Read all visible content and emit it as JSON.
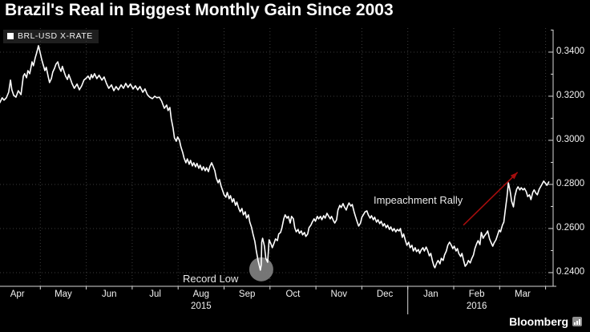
{
  "header": {
    "title": "Brazil's Real in Biggest Monthly Gain Since 2003"
  },
  "legend": {
    "label": "BRL-USD X-RATE",
    "swatch": "white-square"
  },
  "annotations": {
    "record_low": {
      "label": "Record Low"
    },
    "impeachment_rally": {
      "label": "Impeachment Rally"
    }
  },
  "footer": {
    "brand": "Bloomberg",
    "icon": "bar-chart-icon"
  },
  "colors": {
    "background": "#000000",
    "line": "#ffffff",
    "grid": "#3c3c3c",
    "axis": "#d9d9d9",
    "text": "#f2f2f2",
    "arrow": "#a50d0d",
    "record_low_circle": "#808080",
    "legend_bg": "#1e1e1e"
  },
  "chart_data": {
    "type": "line",
    "series_name": "BRL-USD X-RATE",
    "title": "Brazil's Real in Biggest Monthly Gain Since 2003",
    "x_unit": "months since Apr 1 2015",
    "x_tick_labels": [
      "Apr",
      "May",
      "Jun",
      "Jul",
      "Aug",
      "Sep",
      "Oct",
      "Nov",
      "Dec",
      "Jan",
      "Feb",
      "Mar"
    ],
    "year_labels": [
      {
        "text": "2015",
        "under_month_index": 4
      },
      {
        "text": "2016",
        "under_month_index": 10
      }
    ],
    "y_ticks": [
      0.24,
      0.26,
      0.28,
      0.3,
      0.32,
      0.34
    ],
    "y_tick_labels": [
      "0.2400",
      "0.2600",
      "0.2800",
      "0.3000",
      "0.3200",
      "0.3400"
    ],
    "y_minor_ticks": [
      0.25,
      0.27,
      0.29,
      0.31,
      0.33,
      0.35
    ],
    "ylim": [
      0.2338,
      0.3509
    ],
    "xlim": [
      0.12,
      12.16
    ],
    "grid": "dotted",
    "legend_position": "top-left",
    "annotations": {
      "record_low": {
        "x": 5.81,
        "y": 0.2415,
        "marker": "gray-circle",
        "radius_px": 15
      },
      "impeachment_arrow": {
        "from": [
          10.21,
          0.2615
        ],
        "to": [
          11.39,
          0.2855
        ]
      }
    },
    "points": [
      [
        0.12,
        0.3171
      ],
      [
        0.17,
        0.3193
      ],
      [
        0.21,
        0.3182
      ],
      [
        0.26,
        0.3193
      ],
      [
        0.31,
        0.3218
      ],
      [
        0.35,
        0.3273
      ],
      [
        0.38,
        0.3229
      ],
      [
        0.42,
        0.3204
      ],
      [
        0.47,
        0.3196
      ],
      [
        0.52,
        0.3225
      ],
      [
        0.58,
        0.3207
      ],
      [
        0.63,
        0.3291
      ],
      [
        0.66,
        0.3302
      ],
      [
        0.7,
        0.3284
      ],
      [
        0.73,
        0.3316
      ],
      [
        0.77,
        0.3302
      ],
      [
        0.82,
        0.3356
      ],
      [
        0.85,
        0.3338
      ],
      [
        0.89,
        0.3375
      ],
      [
        0.92,
        0.3396
      ],
      [
        0.96,
        0.3429
      ],
      [
        0.99,
        0.3404
      ],
      [
        1.03,
        0.3367
      ],
      [
        1.06,
        0.3345
      ],
      [
        1.1,
        0.3316
      ],
      [
        1.13,
        0.3331
      ],
      [
        1.17,
        0.3291
      ],
      [
        1.2,
        0.3262
      ],
      [
        1.24,
        0.328
      ],
      [
        1.27,
        0.3309
      ],
      [
        1.31,
        0.3327
      ],
      [
        1.34,
        0.3345
      ],
      [
        1.38,
        0.3356
      ],
      [
        1.41,
        0.3331
      ],
      [
        1.45,
        0.3313
      ],
      [
        1.48,
        0.3335
      ],
      [
        1.52,
        0.3309
      ],
      [
        1.55,
        0.3291
      ],
      [
        1.59,
        0.3276
      ],
      [
        1.62,
        0.3298
      ],
      [
        1.66,
        0.3276
      ],
      [
        1.69,
        0.3258
      ],
      [
        1.74,
        0.3236
      ],
      [
        1.8,
        0.3255
      ],
      [
        1.85,
        0.3229
      ],
      [
        1.9,
        0.3247
      ],
      [
        1.95,
        0.3273
      ],
      [
        2.01,
        0.3284
      ],
      [
        2.04,
        0.3291
      ],
      [
        2.08,
        0.3276
      ],
      [
        2.11,
        0.3298
      ],
      [
        2.14,
        0.3284
      ],
      [
        2.18,
        0.3302
      ],
      [
        2.23,
        0.328
      ],
      [
        2.28,
        0.3295
      ],
      [
        2.34,
        0.3273
      ],
      [
        2.39,
        0.3287
      ],
      [
        2.44,
        0.3258
      ],
      [
        2.49,
        0.3236
      ],
      [
        2.55,
        0.3251
      ],
      [
        2.6,
        0.3225
      ],
      [
        2.65,
        0.3244
      ],
      [
        2.7,
        0.3229
      ],
      [
        2.76,
        0.3251
      ],
      [
        2.81,
        0.3236
      ],
      [
        2.86,
        0.3258
      ],
      [
        2.91,
        0.324
      ],
      [
        2.96,
        0.3255
      ],
      [
        3.02,
        0.3233
      ],
      [
        3.07,
        0.3247
      ],
      [
        3.12,
        0.3229
      ],
      [
        3.17,
        0.3244
      ],
      [
        3.23,
        0.3218
      ],
      [
        3.28,
        0.3233
      ],
      [
        3.33,
        0.3207
      ],
      [
        3.38,
        0.3196
      ],
      [
        3.44,
        0.3189
      ],
      [
        3.49,
        0.32
      ],
      [
        3.54,
        0.3193
      ],
      [
        3.59,
        0.3196
      ],
      [
        3.64,
        0.3178
      ],
      [
        3.7,
        0.3145
      ],
      [
        3.75,
        0.316
      ],
      [
        3.78,
        0.3135
      ],
      [
        3.82,
        0.3149
      ],
      [
        3.85,
        0.3098
      ],
      [
        3.89,
        0.3055
      ],
      [
        3.92,
        0.3011
      ],
      [
        3.96,
        0.2996
      ],
      [
        3.99,
        0.3015
      ],
      [
        4.03,
        0.3
      ],
      [
        4.06,
        0.2971
      ],
      [
        4.1,
        0.2945
      ],
      [
        4.13,
        0.292
      ],
      [
        4.17,
        0.2898
      ],
      [
        4.2,
        0.2916
      ],
      [
        4.24,
        0.2891
      ],
      [
        4.27,
        0.2909
      ],
      [
        4.31,
        0.2884
      ],
      [
        4.34,
        0.2898
      ],
      [
        4.38,
        0.288
      ],
      [
        4.41,
        0.2895
      ],
      [
        4.45,
        0.2873
      ],
      [
        4.48,
        0.2887
      ],
      [
        4.52,
        0.2865
      ],
      [
        4.55,
        0.288
      ],
      [
        4.59,
        0.2862
      ],
      [
        4.62,
        0.2876
      ],
      [
        4.66,
        0.2858
      ],
      [
        4.69,
        0.288
      ],
      [
        4.73,
        0.2898
      ],
      [
        4.76,
        0.2884
      ],
      [
        4.8,
        0.2862
      ],
      [
        4.83,
        0.2829
      ],
      [
        4.87,
        0.2807
      ],
      [
        4.9,
        0.2822
      ],
      [
        4.93,
        0.2796
      ],
      [
        4.97,
        0.2771
      ],
      [
        5.0,
        0.2753
      ],
      [
        5.04,
        0.2742
      ],
      [
        5.07,
        0.2764
      ],
      [
        5.11,
        0.2735
      ],
      [
        5.14,
        0.2749
      ],
      [
        5.18,
        0.272
      ],
      [
        5.21,
        0.2735
      ],
      [
        5.25,
        0.2705
      ],
      [
        5.28,
        0.272
      ],
      [
        5.32,
        0.2691
      ],
      [
        5.35,
        0.2676
      ],
      [
        5.39,
        0.2691
      ],
      [
        5.42,
        0.2662
      ],
      [
        5.46,
        0.2676
      ],
      [
        5.49,
        0.2647
      ],
      [
        5.53,
        0.2662
      ],
      [
        5.56,
        0.2629
      ],
      [
        5.6,
        0.2604
      ],
      [
        5.63,
        0.2575
      ],
      [
        5.67,
        0.2542
      ],
      [
        5.7,
        0.2502
      ],
      [
        5.74,
        0.2455
      ],
      [
        5.79,
        0.2411
      ],
      [
        5.81,
        0.2436
      ],
      [
        5.82,
        0.2538
      ],
      [
        5.84,
        0.2556
      ],
      [
        5.88,
        0.252
      ],
      [
        5.91,
        0.2465
      ],
      [
        5.95,
        0.2447
      ],
      [
        5.98,
        0.2549
      ],
      [
        6.02,
        0.2531
      ],
      [
        6.05,
        0.2513
      ],
      [
        6.09,
        0.2535
      ],
      [
        6.12,
        0.2553
      ],
      [
        6.16,
        0.2545
      ],
      [
        6.19,
        0.2575
      ],
      [
        6.23,
        0.2582
      ],
      [
        6.26,
        0.2604
      ],
      [
        6.3,
        0.2644
      ],
      [
        6.33,
        0.2662
      ],
      [
        6.37,
        0.2647
      ],
      [
        6.4,
        0.2655
      ],
      [
        6.44,
        0.2625
      ],
      [
        6.47,
        0.2655
      ],
      [
        6.51,
        0.2644
      ],
      [
        6.54,
        0.2604
      ],
      [
        6.57,
        0.2585
      ],
      [
        6.61,
        0.2596
      ],
      [
        6.64,
        0.2578
      ],
      [
        6.68,
        0.2589
      ],
      [
        6.71,
        0.2571
      ],
      [
        6.75,
        0.2582
      ],
      [
        6.78,
        0.2564
      ],
      [
        6.82,
        0.2575
      ],
      [
        6.85,
        0.2604
      ],
      [
        6.89,
        0.2615
      ],
      [
        6.92,
        0.2629
      ],
      [
        6.96,
        0.2644
      ],
      [
        6.99,
        0.2633
      ],
      [
        7.03,
        0.2655
      ],
      [
        7.06,
        0.2644
      ],
      [
        7.1,
        0.2655
      ],
      [
        7.13,
        0.264
      ],
      [
        7.17,
        0.2658
      ],
      [
        7.2,
        0.2647
      ],
      [
        7.24,
        0.2669
      ],
      [
        7.27,
        0.2658
      ],
      [
        7.31,
        0.2644
      ],
      [
        7.34,
        0.2655
      ],
      [
        7.38,
        0.2636
      ],
      [
        7.41,
        0.2625
      ],
      [
        7.45,
        0.264
      ],
      [
        7.48,
        0.2684
      ],
      [
        7.52,
        0.2705
      ],
      [
        7.55,
        0.2695
      ],
      [
        7.59,
        0.2713
      ],
      [
        7.62,
        0.2698
      ],
      [
        7.66,
        0.2684
      ],
      [
        7.69,
        0.2702
      ],
      [
        7.72,
        0.2716
      ],
      [
        7.76,
        0.2702
      ],
      [
        7.79,
        0.2709
      ],
      [
        7.83,
        0.2676
      ],
      [
        7.86,
        0.2655
      ],
      [
        7.9,
        0.2629
      ],
      [
        7.93,
        0.2611
      ],
      [
        7.97,
        0.2625
      ],
      [
        8.0,
        0.2651
      ],
      [
        8.04,
        0.2665
      ],
      [
        8.07,
        0.2676
      ],
      [
        8.11,
        0.268
      ],
      [
        8.14,
        0.2662
      ],
      [
        8.18,
        0.2647
      ],
      [
        8.21,
        0.2658
      ],
      [
        8.25,
        0.264
      ],
      [
        8.28,
        0.2651
      ],
      [
        8.32,
        0.2629
      ],
      [
        8.35,
        0.264
      ],
      [
        8.39,
        0.2622
      ],
      [
        8.42,
        0.2633
      ],
      [
        8.46,
        0.2611
      ],
      [
        8.49,
        0.2622
      ],
      [
        8.53,
        0.2604
      ],
      [
        8.56,
        0.2615
      ],
      [
        8.6,
        0.2596
      ],
      [
        8.63,
        0.2607
      ],
      [
        8.67,
        0.2589
      ],
      [
        8.7,
        0.26
      ],
      [
        8.74,
        0.2585
      ],
      [
        8.77,
        0.2596
      ],
      [
        8.81,
        0.2589
      ],
      [
        8.84,
        0.26
      ],
      [
        8.88,
        0.256
      ],
      [
        8.91,
        0.2575
      ],
      [
        8.95,
        0.2545
      ],
      [
        8.98,
        0.2524
      ],
      [
        9.02,
        0.2538
      ],
      [
        9.05,
        0.2513
      ],
      [
        9.09,
        0.2524
      ],
      [
        9.12,
        0.2498
      ],
      [
        9.16,
        0.2513
      ],
      [
        9.19,
        0.2495
      ],
      [
        9.23,
        0.2505
      ],
      [
        9.26,
        0.2487
      ],
      [
        9.29,
        0.2502
      ],
      [
        9.33,
        0.2513
      ],
      [
        9.36,
        0.2498
      ],
      [
        9.4,
        0.2516
      ],
      [
        9.43,
        0.2502
      ],
      [
        9.47,
        0.2476
      ],
      [
        9.5,
        0.2487
      ],
      [
        9.54,
        0.2451
      ],
      [
        9.57,
        0.2429
      ],
      [
        9.59,
        0.2422
      ],
      [
        9.63,
        0.2444
      ],
      [
        9.66,
        0.2455
      ],
      [
        9.7,
        0.244
      ],
      [
        9.73,
        0.2465
      ],
      [
        9.77,
        0.2455
      ],
      [
        9.8,
        0.248
      ],
      [
        9.84,
        0.2498
      ],
      [
        9.87,
        0.2524
      ],
      [
        9.91,
        0.2538
      ],
      [
        9.94,
        0.2527
      ],
      [
        9.98,
        0.2509
      ],
      [
        10.01,
        0.252
      ],
      [
        10.05,
        0.2498
      ],
      [
        10.08,
        0.2509
      ],
      [
        10.11,
        0.2487
      ],
      [
        10.15,
        0.2473
      ],
      [
        10.18,
        0.2487
      ],
      [
        10.22,
        0.2451
      ],
      [
        10.25,
        0.2429
      ],
      [
        10.29,
        0.244
      ],
      [
        10.32,
        0.2455
      ],
      [
        10.36,
        0.2444
      ],
      [
        10.39,
        0.2462
      ],
      [
        10.43,
        0.248
      ],
      [
        10.46,
        0.2509
      ],
      [
        10.5,
        0.2531
      ],
      [
        10.53,
        0.2545
      ],
      [
        10.57,
        0.2527
      ],
      [
        10.6,
        0.2582
      ],
      [
        10.64,
        0.2556
      ],
      [
        10.67,
        0.2567
      ],
      [
        10.71,
        0.2578
      ],
      [
        10.74,
        0.2589
      ],
      [
        10.78,
        0.2553
      ],
      [
        10.81,
        0.2538
      ],
      [
        10.85,
        0.252
      ],
      [
        10.88,
        0.2535
      ],
      [
        10.92,
        0.2549
      ],
      [
        10.95,
        0.2567
      ],
      [
        10.99,
        0.2593
      ],
      [
        11.02,
        0.2585
      ],
      [
        11.06,
        0.2615
      ],
      [
        11.09,
        0.2629
      ],
      [
        11.12,
        0.268
      ],
      [
        11.16,
        0.2745
      ],
      [
        11.19,
        0.2807
      ],
      [
        11.23,
        0.2767
      ],
      [
        11.26,
        0.2724
      ],
      [
        11.3,
        0.2698
      ],
      [
        11.33,
        0.2745
      ],
      [
        11.37,
        0.2778
      ],
      [
        11.4,
        0.2789
      ],
      [
        11.44,
        0.2775
      ],
      [
        11.47,
        0.2785
      ],
      [
        11.51,
        0.2775
      ],
      [
        11.54,
        0.2782
      ],
      [
        11.58,
        0.2767
      ],
      [
        11.61,
        0.2745
      ],
      [
        11.65,
        0.2753
      ],
      [
        11.68,
        0.2731
      ],
      [
        11.72,
        0.2764
      ],
      [
        11.75,
        0.2775
      ],
      [
        11.79,
        0.276
      ],
      [
        11.82,
        0.2753
      ],
      [
        11.86,
        0.2778
      ],
      [
        11.89,
        0.2789
      ],
      [
        11.93,
        0.2804
      ],
      [
        11.96,
        0.2815
      ],
      [
        12.0,
        0.2804
      ],
      [
        12.03,
        0.2796
      ],
      [
        12.07,
        0.2811
      ]
    ]
  }
}
